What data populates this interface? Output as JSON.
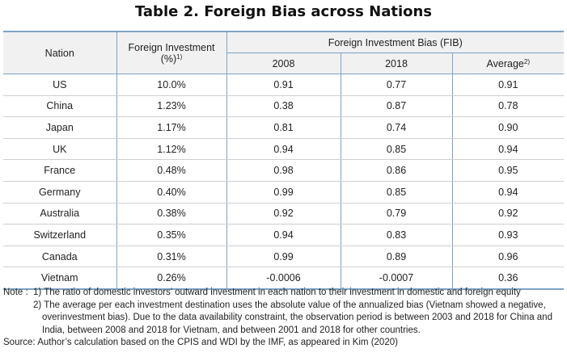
{
  "title": "Table 2. Foreign Bias across Nations",
  "header": {
    "nation": "Nation",
    "foreign_investment": "Foreign Investment",
    "foreign_investment_unit": "(%)",
    "foreign_investment_sup": "1)",
    "fib_group": "Foreign Investment Bias (FIB)",
    "y2008": "2008",
    "y2018": "2018",
    "average": "Average",
    "average_sup": "2)"
  },
  "rows": [
    {
      "nation": "US",
      "fi": "10.0%",
      "y2008": "0.91",
      "y2018": "0.77",
      "avg": "0.91"
    },
    {
      "nation": "China",
      "fi": "1.23%",
      "y2008": "0.38",
      "y2018": "0.87",
      "avg": "0.78"
    },
    {
      "nation": "Japan",
      "fi": "1.17%",
      "y2008": "0.81",
      "y2018": "0.74",
      "avg": "0.90"
    },
    {
      "nation": "UK",
      "fi": "1.12%",
      "y2008": "0.94",
      "y2018": "0.85",
      "avg": "0.94"
    },
    {
      "nation": "France",
      "fi": "0.48%",
      "y2008": "0.98",
      "y2018": "0.86",
      "avg": "0.95"
    },
    {
      "nation": "Germany",
      "fi": "0.40%",
      "y2008": "0.99",
      "y2018": "0.85",
      "avg": "0.94"
    },
    {
      "nation": "Australia",
      "fi": "0.38%",
      "y2008": "0.92",
      "y2018": "0.79",
      "avg": "0.92"
    },
    {
      "nation": "Switzerland",
      "fi": "0.35%",
      "y2008": "0.94",
      "y2018": "0.83",
      "avg": "0.93"
    },
    {
      "nation": "Canada",
      "fi": "0.31%",
      "y2008": "0.99",
      "y2018": "0.89",
      "avg": "0.96"
    },
    {
      "nation": "Vietnam",
      "fi": "0.26%",
      "y2008": "-0.0006",
      "y2018": "-0.0007",
      "avg": "0.36"
    }
  ],
  "notes": {
    "label": "Note :",
    "note1": "1) The ratio of domestic investors’ outward investment in each nation to their investment in domestic and foreign equity",
    "note2": "2) The average per each investment destination uses the absolute value of the annualized bias (Vietnam showed a negative, overinvestment bias). Due to the data availability constraint, the observation period is between 2003 and 2018 for China and India, between 2008 and 2018 for Vietnam, and between 2001 and 2018 for other countries.",
    "source": "Source: Author’s calculation based on the CPIS and WDI by the IMF, as appeared in Kim (2020)"
  }
}
